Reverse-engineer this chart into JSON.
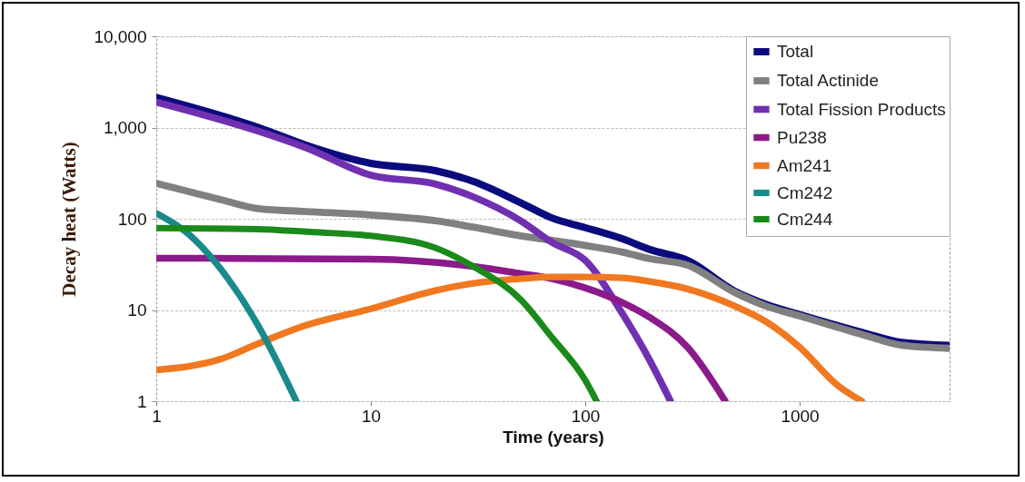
{
  "chart_data": {
    "type": "line",
    "xlabel": "Time (years)",
    "ylabel": "Decay heat (Watts)",
    "log": "xy",
    "grid": "y",
    "legend": "top right",
    "line_style": "solid",
    "xlim": [
      1,
      5000
    ],
    "xticks": [
      1,
      10,
      100,
      1000
    ],
    "ylim": [
      1,
      10000
    ],
    "yticks": [
      {
        "value": 10000,
        "label": "10,000"
      },
      {
        "value": 1000,
        "label": "1,000"
      },
      100,
      10,
      1
    ],
    "series": [
      {
        "name": "Total",
        "color": "#0b0b7e",
        "x": [
          1,
          3,
          5,
          10,
          20,
          30,
          50,
          70,
          100,
          150,
          200,
          300,
          500,
          700,
          1000,
          2000,
          3000,
          5000
        ],
        "values": [
          2140,
          1000,
          640,
          405,
          337,
          257,
          150,
          102,
          80,
          60,
          46,
          35,
          16,
          11.5,
          8.9,
          5.6,
          4.4,
          4.1
        ]
      },
      {
        "name": "Total Actinide",
        "color": "#808080",
        "x": [
          1,
          2,
          3,
          5,
          10,
          20,
          30,
          50,
          70,
          100,
          150,
          200,
          300,
          500,
          700,
          1000,
          2000,
          3000,
          5000
        ],
        "values": [
          245,
          162,
          129,
          120,
          110,
          95,
          81,
          65,
          58,
          51,
          43,
          36.5,
          31,
          15.5,
          11,
          8.6,
          5.3,
          4.1,
          3.8
        ]
      },
      {
        "name": "Total Fission Products",
        "color": "#7030b0",
        "x": [
          1,
          3,
          5,
          10,
          20,
          30,
          50,
          70,
          100,
          150,
          200,
          250
        ],
        "values": [
          1900,
          910,
          600,
          300,
          240,
          174,
          95,
          55,
          35,
          8.9,
          2.8,
          1
        ]
      },
      {
        "name": "Pu238",
        "color": "#8b1a8b",
        "x": [
          1,
          10,
          30,
          50,
          70,
          100,
          150,
          200,
          300,
          450
        ],
        "values": [
          37,
          36,
          30,
          25,
          22,
          17.5,
          12,
          8.3,
          3.9,
          1
        ]
      },
      {
        "name": "Am241",
        "color": "#f07820",
        "x": [
          1,
          2,
          3,
          5,
          10,
          20,
          30,
          50,
          70,
          100,
          150,
          200,
          300,
          500,
          700,
          1000,
          1500,
          1950
        ],
        "values": [
          2.2,
          2.9,
          4.3,
          6.8,
          10.3,
          16.3,
          19.6,
          22,
          23,
          23,
          22.5,
          20.5,
          17,
          11,
          7.4,
          3.9,
          1.5,
          1
        ]
      },
      {
        "name": "Cm242",
        "color": "#1a8a8a",
        "x": [
          1,
          1.5,
          2,
          3,
          4.5
        ],
        "values": [
          115,
          60,
          28,
          6.6,
          1
        ]
      },
      {
        "name": "Cm244",
        "color": "#1a8a1a",
        "x": [
          1,
          3,
          5,
          10,
          20,
          30,
          50,
          70,
          100,
          113
        ],
        "values": [
          79,
          77,
          72,
          65,
          48,
          30,
          13,
          5,
          1.7,
          1
        ]
      }
    ]
  }
}
